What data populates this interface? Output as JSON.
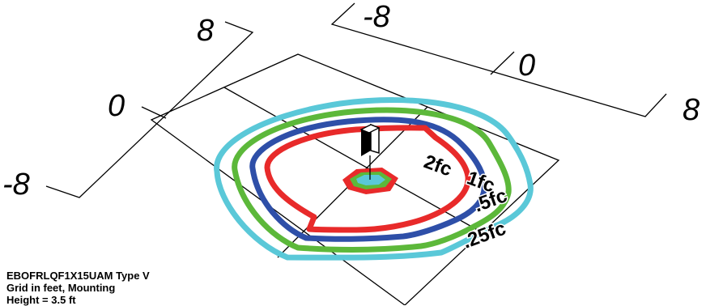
{
  "axis_left": {
    "labels": [
      "8",
      "0",
      "-8"
    ]
  },
  "axis_right": {
    "labels": [
      "-8",
      "0",
      "8"
    ]
  },
  "contours": [
    {
      "label": "2fc",
      "color": "#e82a2a"
    },
    {
      "label": "1fc",
      "color": "#2e4fa8"
    },
    {
      "label": ".5fc",
      "color": "#5cb83a"
    },
    {
      "label": ".25fc",
      "color": "#5ac8d8"
    }
  ],
  "caption": {
    "line1": "EBOFRLQF1X15UAM Type V",
    "line2": "Grid in feet, Mounting",
    "line3": "Height = 3.5 ft"
  },
  "colors": {
    "center_fill": "#5ac8d8",
    "center_mid": "#5cb83a",
    "center_ring": "#e82a2a",
    "fixture": "#000000"
  }
}
